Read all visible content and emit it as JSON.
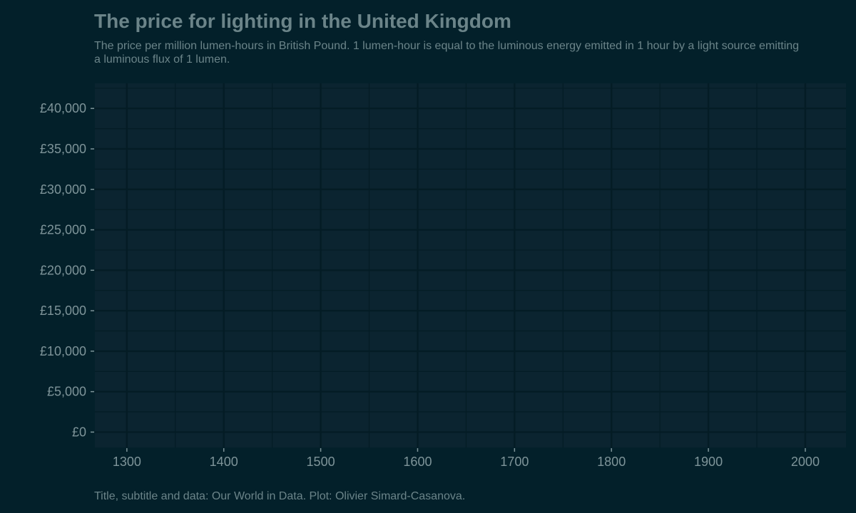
{
  "header": {
    "title": "The price for lighting in the United Kingdom",
    "subtitle": "The price per million lumen-hours in British Pound. 1 lumen-hour is equal to the luminous energy emitted in 1 hour by a light source emitting a luminous flux of 1 lumen."
  },
  "caption": "Title, subtitle and data: Our World in Data. Plot: Olivier Simard-Casanova.",
  "colors": {
    "background": "#03202a",
    "panel": "#0b2430",
    "grid": "#041c25",
    "text": "#6b8489"
  },
  "chart_data": {
    "type": "line",
    "title": "The price for lighting in the United Kingdom",
    "subtitle": "The price per million lumen-hours in British Pound. 1 lumen-hour is equal to the luminous energy emitted in 1 hour by a light source emitting a luminous flux of 1 lumen.",
    "xlabel": "",
    "ylabel": "",
    "xlim": [
      1267,
      2042
    ],
    "ylim": [
      -1900,
      43100
    ],
    "x_ticks": [
      1300,
      1400,
      1500,
      1600,
      1700,
      1800,
      1900,
      2000
    ],
    "x_tick_labels": [
      "1300",
      "1400",
      "1500",
      "1600",
      "1700",
      "1800",
      "1900",
      "2000"
    ],
    "y_ticks": [
      0,
      5000,
      10000,
      15000,
      20000,
      25000,
      30000,
      35000,
      40000
    ],
    "y_tick_labels": [
      "£0",
      "£5,000",
      "£10,000",
      "£15,000",
      "£20,000",
      "£25,000",
      "£30,000",
      "£35,000",
      "£40,000"
    ],
    "grid": true,
    "series": []
  }
}
